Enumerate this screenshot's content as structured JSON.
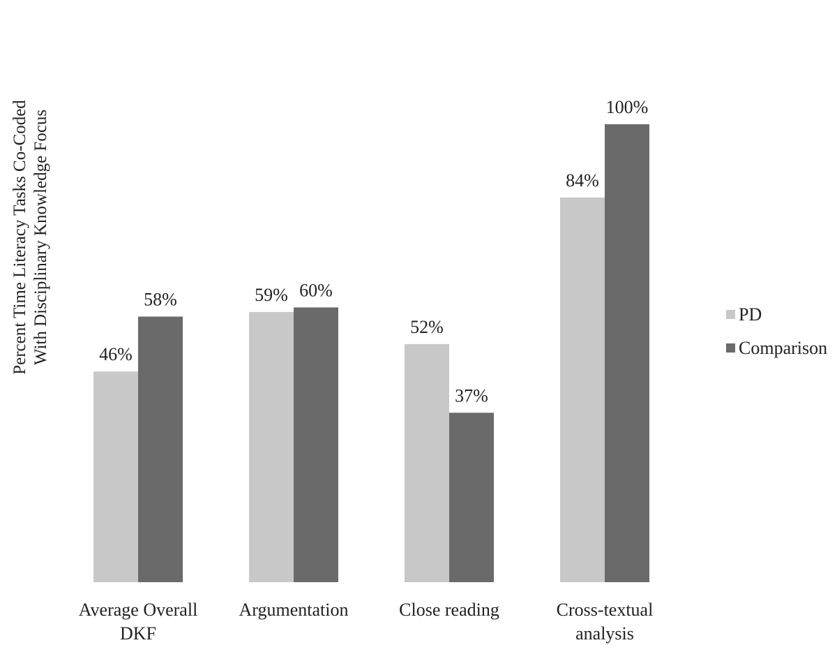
{
  "chart_data": {
    "type": "bar",
    "title": "",
    "xlabel": "",
    "ylabel": [
      "Percent Time Literacy Tasks Co-Coded",
      "With Disciplinary Knowledge Focus"
    ],
    "categories": [
      [
        "Average Overall",
        "DKF"
      ],
      [
        "Argumentation"
      ],
      [
        "Close reading"
      ],
      [
        "Cross-textual",
        "analysis"
      ]
    ],
    "series": [
      {
        "name": "PD",
        "color": "#c8c8c8",
        "values": [
          46,
          59,
          52,
          84
        ],
        "labels": [
          "46%",
          "59%",
          "52%",
          "84%"
        ]
      },
      {
        "name": "Comparison",
        "color": "#6a6a6a",
        "values": [
          58,
          60,
          37,
          100
        ],
        "labels": [
          "58%",
          "60%",
          "37%",
          "100%"
        ]
      }
    ],
    "ylim": [
      0,
      100
    ],
    "grid": false,
    "legend_position": "right"
  }
}
